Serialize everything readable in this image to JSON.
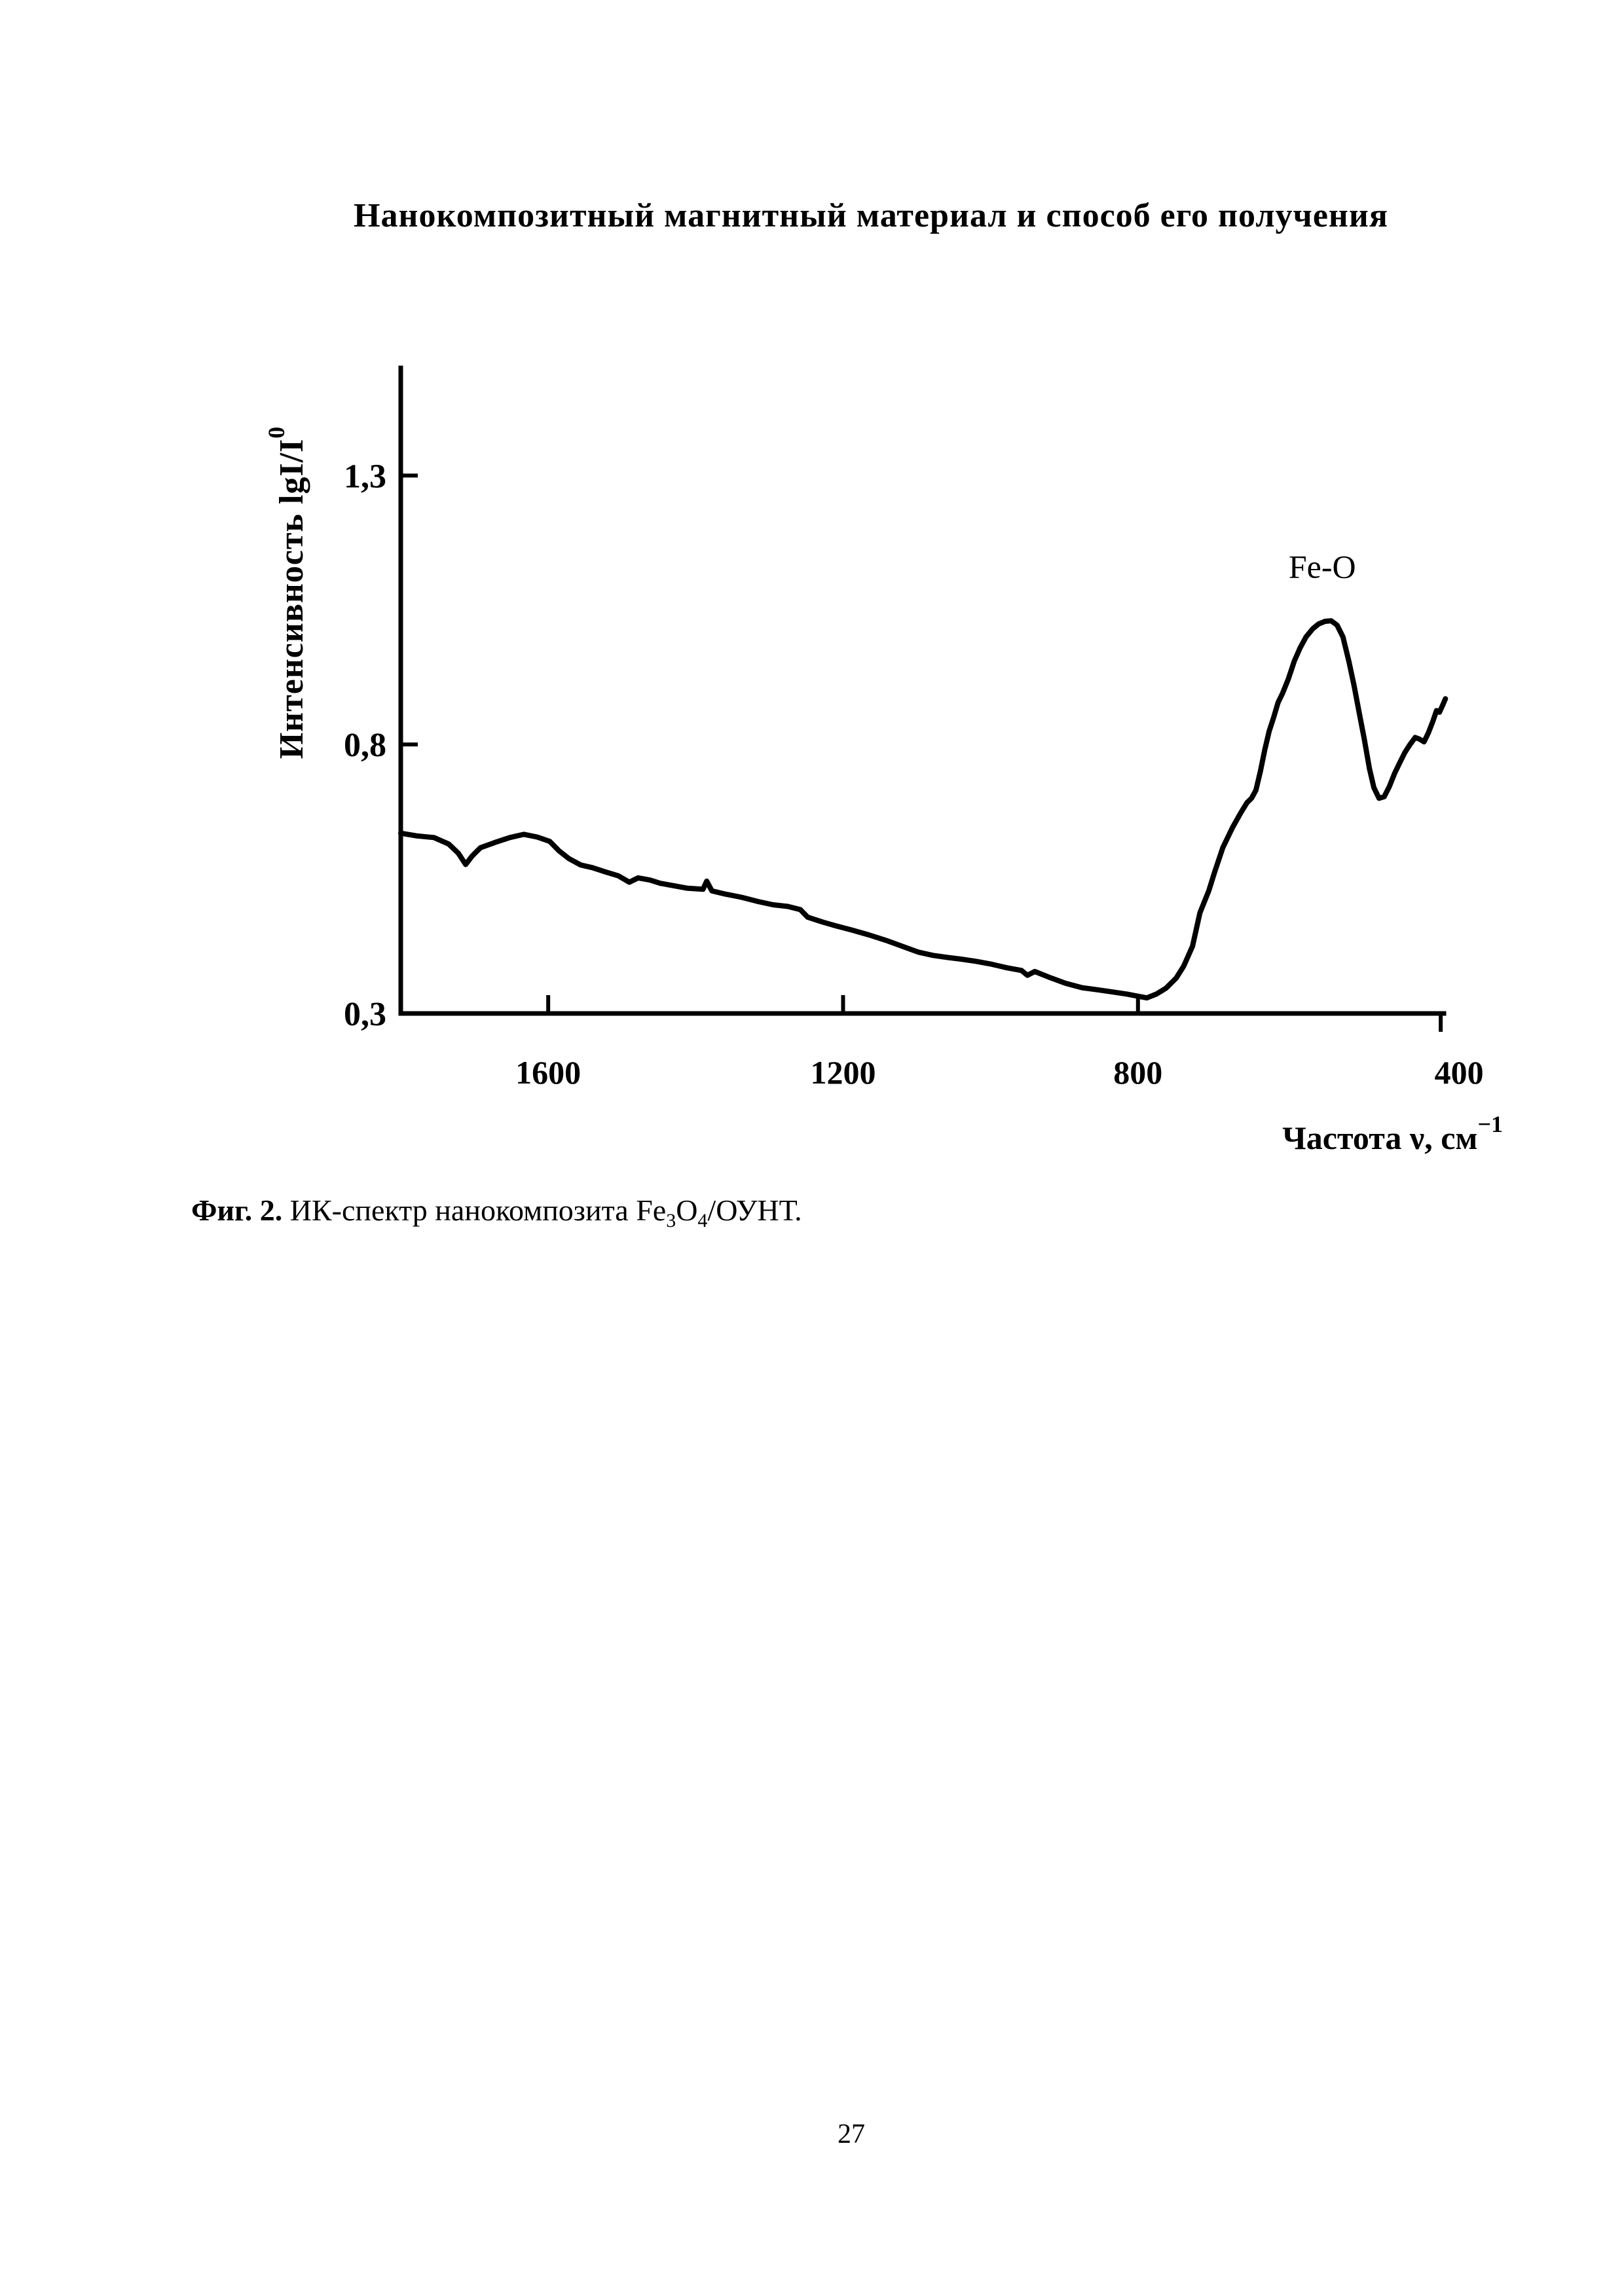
{
  "document": {
    "title": "Нанокомпозитный магнитный материал и способ его получения"
  },
  "figure": {
    "caption": {
      "label": "Фиг. 2.",
      "text": " ИК-спектр нанокомпозита ",
      "formula_pre": "Fe",
      "formula_sub1": "3",
      "formula_mid": "O",
      "formula_sub2": "4",
      "formula_post": "/ОУНТ."
    }
  },
  "page": {
    "number": "27"
  },
  "chart_data": {
    "type": "line",
    "title": "",
    "xlabel": {
      "text": "Частота ν, см",
      "sup": "−1"
    },
    "ylabel": {
      "text": "Интенсивность lgI/I",
      "sup": "0"
    },
    "x_axis_reversed": true,
    "grid": false,
    "xlim": [
      1800,
      385
    ],
    "ylim": [
      0.3,
      1.5
    ],
    "x_ticks": [
      {
        "label": "1600",
        "value": 1600
      },
      {
        "label": "1200",
        "value": 1200
      },
      {
        "label": "800",
        "value": 800
      },
      {
        "label": "400",
        "value": 400,
        "tick_side": "down"
      }
    ],
    "y_ticks": [
      {
        "label": "1,3",
        "value": 1.3
      },
      {
        "label": "0,8",
        "value": 0.8
      },
      {
        "label": "0,3",
        "value": 0.3
      }
    ],
    "annotation": {
      "text": "Fe-O",
      "x": 550,
      "y": 1.11
    },
    "series": [
      {
        "points": [
          [
            1800,
            0.635
          ],
          [
            1778,
            0.63
          ],
          [
            1755,
            0.627
          ],
          [
            1735,
            0.615
          ],
          [
            1722,
            0.598
          ],
          [
            1712,
            0.577
          ],
          [
            1703,
            0.593
          ],
          [
            1692,
            0.608
          ],
          [
            1672,
            0.618
          ],
          [
            1652,
            0.627
          ],
          [
            1633,
            0.633
          ],
          [
            1615,
            0.628
          ],
          [
            1598,
            0.62
          ],
          [
            1585,
            0.602
          ],
          [
            1572,
            0.588
          ],
          [
            1556,
            0.576
          ],
          [
            1540,
            0.571
          ],
          [
            1522,
            0.563
          ],
          [
            1505,
            0.556
          ],
          [
            1490,
            0.544
          ],
          [
            1478,
            0.552
          ],
          [
            1462,
            0.548
          ],
          [
            1448,
            0.542
          ],
          [
            1432,
            0.538
          ],
          [
            1412,
            0.533
          ],
          [
            1390,
            0.531
          ],
          [
            1385,
            0.546
          ],
          [
            1378,
            0.528
          ],
          [
            1360,
            0.522
          ],
          [
            1338,
            0.516
          ],
          [
            1315,
            0.508
          ],
          [
            1295,
            0.502
          ],
          [
            1275,
            0.499
          ],
          [
            1258,
            0.493
          ],
          [
            1248,
            0.479
          ],
          [
            1228,
            0.47
          ],
          [
            1210,
            0.463
          ],
          [
            1188,
            0.455
          ],
          [
            1165,
            0.446
          ],
          [
            1142,
            0.436
          ],
          [
            1120,
            0.425
          ],
          [
            1098,
            0.414
          ],
          [
            1078,
            0.408
          ],
          [
            1058,
            0.404
          ],
          [
            1040,
            0.401
          ],
          [
            1020,
            0.397
          ],
          [
            1000,
            0.392
          ],
          [
            978,
            0.385
          ],
          [
            958,
            0.38
          ],
          [
            950,
            0.371
          ],
          [
            940,
            0.378
          ],
          [
            918,
            0.366
          ],
          [
            898,
            0.356
          ],
          [
            876,
            0.348
          ],
          [
            855,
            0.344
          ],
          [
            835,
            0.34
          ],
          [
            815,
            0.336
          ],
          [
            800,
            0.332
          ],
          [
            788,
            0.329
          ],
          [
            775,
            0.336
          ],
          [
            762,
            0.347
          ],
          [
            748,
            0.366
          ],
          [
            738,
            0.388
          ],
          [
            726,
            0.425
          ],
          [
            716,
            0.487
          ],
          [
            704,
            0.528
          ],
          [
            696,
            0.563
          ],
          [
            685,
            0.608
          ],
          [
            672,
            0.645
          ],
          [
            661,
            0.672
          ],
          [
            652,
            0.692
          ],
          [
            646,
            0.7
          ],
          [
            640,
            0.715
          ],
          [
            634,
            0.75
          ],
          [
            628,
            0.79
          ],
          [
            622,
            0.825
          ],
          [
            616,
            0.85
          ],
          [
            610,
            0.878
          ],
          [
            604,
            0.895
          ],
          [
            596,
            0.922
          ],
          [
            588,
            0.955
          ],
          [
            580,
            0.98
          ],
          [
            572,
            1.0
          ],
          [
            563,
            1.015
          ],
          [
            555,
            1.024
          ],
          [
            546,
            1.029
          ],
          [
            538,
            1.03
          ],
          [
            530,
            1.022
          ],
          [
            522,
            1.0
          ],
          [
            514,
            0.955
          ],
          [
            507,
            0.91
          ],
          [
            500,
            0.86
          ],
          [
            493,
            0.81
          ],
          [
            486,
            0.755
          ],
          [
            480,
            0.72
          ],
          [
            473,
            0.7
          ],
          [
            466,
            0.703
          ],
          [
            459,
            0.722
          ],
          [
            452,
            0.746
          ],
          [
            445,
            0.766
          ],
          [
            438,
            0.785
          ],
          [
            431,
            0.8
          ],
          [
            424,
            0.813
          ],
          [
            418,
            0.81
          ],
          [
            412,
            0.805
          ],
          [
            406,
            0.822
          ],
          [
            400,
            0.843
          ],
          [
            395,
            0.863
          ],
          [
            391,
            0.86
          ],
          [
            387,
            0.872
          ],
          [
            383,
            0.885
          ]
        ]
      }
    ]
  }
}
